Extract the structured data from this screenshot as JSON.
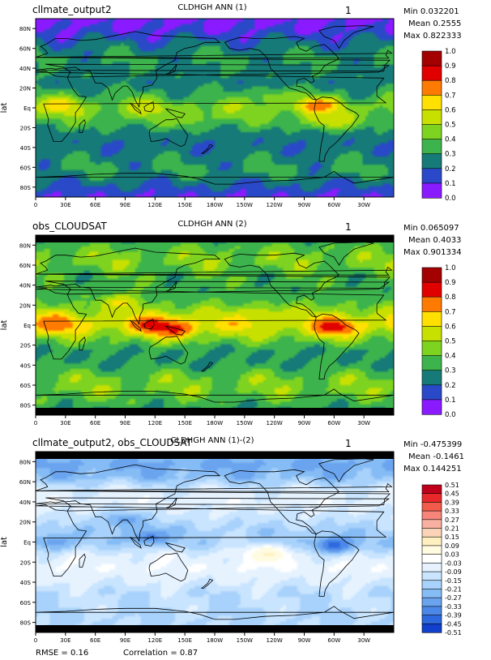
{
  "chart_data": [
    {
      "type": "heatmap",
      "title": "CLDHGH ANN (1)",
      "left_title": "cllmate_output2",
      "panel_number": "1",
      "ylabel": "lat",
      "stats": {
        "min": "Min 0.032201",
        "mean": "Mean 0.2555",
        "max": "Max 0.822333"
      },
      "x_ticks": [
        "0",
        "30E",
        "60E",
        "90E",
        "120E",
        "150E",
        "180W",
        "150W",
        "120W",
        "90W",
        "60W",
        "30W"
      ],
      "y_ticks": [
        "80N",
        "60N",
        "40N",
        "20N",
        "Eq",
        "20S",
        "40S",
        "60S",
        "80S"
      ],
      "colorbar": {
        "labels": [
          "1.0",
          "0.9",
          "0.8",
          "0.7",
          "0.6",
          "0.5",
          "0.4",
          "0.3",
          "0.2",
          "0.1",
          "0.0"
        ],
        "colors": [
          "#a30000",
          "#e00000",
          "#ff7a00",
          "#ffe000",
          "#c8e000",
          "#7ed320",
          "#3cb34c",
          "#157a78",
          "#2a49c8",
          "#8a1aff"
        ]
      },
      "lat_profile": [
        0.06,
        0.12,
        0.22,
        0.3,
        0.28,
        0.25,
        0.33,
        0.45,
        0.38,
        0.26,
        0.22,
        0.28,
        0.3,
        0.2,
        0.1
      ],
      "hotspots": [
        {
          "lon": 25,
          "lat": 3,
          "value": 0.65
        },
        {
          "lon": 110,
          "lat": 0,
          "value": 0.55
        },
        {
          "lon": 150,
          "lat": -8,
          "value": 0.5
        },
        {
          "lon": 283,
          "lat": 2,
          "value": 0.8
        },
        {
          "lon": 295,
          "lat": -12,
          "value": 0.6
        },
        {
          "lon": 240,
          "lat": 10,
          "value": 0.45
        }
      ]
    },
    {
      "type": "heatmap",
      "title": "CLDHGH ANN (2)",
      "left_title": "obs_CLOUDSAT",
      "panel_number": "1",
      "ylabel": "lat",
      "stats": {
        "min": "Min 0.065097",
        "mean": "Mean 0.4033",
        "max": "Max 0.901334"
      },
      "x_ticks": [
        "0",
        "30E",
        "60E",
        "90E",
        "120E",
        "150E",
        "180W",
        "150W",
        "120W",
        "90W",
        "60W",
        "30W"
      ],
      "y_ticks": [
        "80N",
        "60N",
        "40N",
        "20N",
        "Eq",
        "20S",
        "40S",
        "60S",
        "80S"
      ],
      "colorbar": {
        "labels": [
          "1.0",
          "0.9",
          "0.8",
          "0.7",
          "0.6",
          "0.5",
          "0.4",
          "0.3",
          "0.2",
          "0.1",
          "0.0"
        ],
        "colors": [
          "#a30000",
          "#e00000",
          "#ff7a00",
          "#ffe000",
          "#c8e000",
          "#7ed320",
          "#3cb34c",
          "#157a78",
          "#2a49c8",
          "#8a1aff"
        ]
      },
      "lat_profile": [
        0.28,
        0.4,
        0.45,
        0.38,
        0.34,
        0.36,
        0.5,
        0.62,
        0.45,
        0.3,
        0.3,
        0.42,
        0.44,
        0.36,
        0.25
      ],
      "hotspots": [
        {
          "lon": 20,
          "lat": 2,
          "value": 0.8
        },
        {
          "lon": 120,
          "lat": 0,
          "value": 0.85
        },
        {
          "lon": 140,
          "lat": -4,
          "value": 0.82
        },
        {
          "lon": 300,
          "lat": -2,
          "value": 0.85
        },
        {
          "lon": 85,
          "lat": 22,
          "value": 0.62
        },
        {
          "lon": 230,
          "lat": 8,
          "value": 0.6
        }
      ]
    },
    {
      "type": "heatmap",
      "title": "CLDHGH ANN (1)-(2)",
      "left_title": "cllmate_output2, obs_CLOUDSAT",
      "panel_number": "1",
      "ylabel": "lat",
      "stats": {
        "min": "Min -0.475399",
        "mean": "Mean -0.1461",
        "max": "Max 0.144251"
      },
      "x_ticks": [
        "0",
        "30E",
        "60E",
        "90E",
        "120E",
        "150E",
        "180W",
        "150W",
        "120W",
        "90W",
        "60W",
        "30W"
      ],
      "y_ticks": [
        "80N",
        "60N",
        "40N",
        "20N",
        "Eq",
        "20S",
        "40S",
        "60S",
        "80S"
      ],
      "colorbar": {
        "labels": [
          "0.51",
          "0.45",
          "0.39",
          "0.33",
          "0.27",
          "0.21",
          "0.15",
          "0.09",
          "0.03",
          "-0.03",
          "-0.09",
          "-0.15",
          "-0.21",
          "-0.27",
          "-0.33",
          "-0.39",
          "-0.45",
          "-0.51"
        ],
        "colors": [
          "#c0001a",
          "#e8282a",
          "#f25a4a",
          "#f7857a",
          "#f9b0a0",
          "#fbd3b8",
          "#fff0c0",
          "#fffbe0",
          "#ffffff",
          "#e6f3ff",
          "#c8e4ff",
          "#a8d2fb",
          "#86bcf5",
          "#6aa4ef",
          "#4c88e8",
          "#2e68de",
          "#1040cc"
        ]
      },
      "lat_profile": [
        -0.22,
        -0.28,
        -0.23,
        -0.08,
        -0.06,
        -0.11,
        -0.17,
        -0.17,
        -0.07,
        -0.04,
        -0.08,
        -0.14,
        -0.14,
        -0.16,
        -0.15
      ],
      "hotspots": [
        {
          "lon": 300,
          "lat": -3,
          "value": -0.42
        },
        {
          "lon": 115,
          "lat": 5,
          "value": -0.35
        },
        {
          "lon": 20,
          "lat": 0,
          "value": -0.3
        },
        {
          "lon": 90,
          "lat": 22,
          "value": -0.3
        },
        {
          "lon": 235,
          "lat": -12,
          "value": 0.1
        }
      ]
    }
  ],
  "footer": {
    "rmse": "RMSE = 0.16",
    "correlation": "Correlation = 0.87"
  }
}
